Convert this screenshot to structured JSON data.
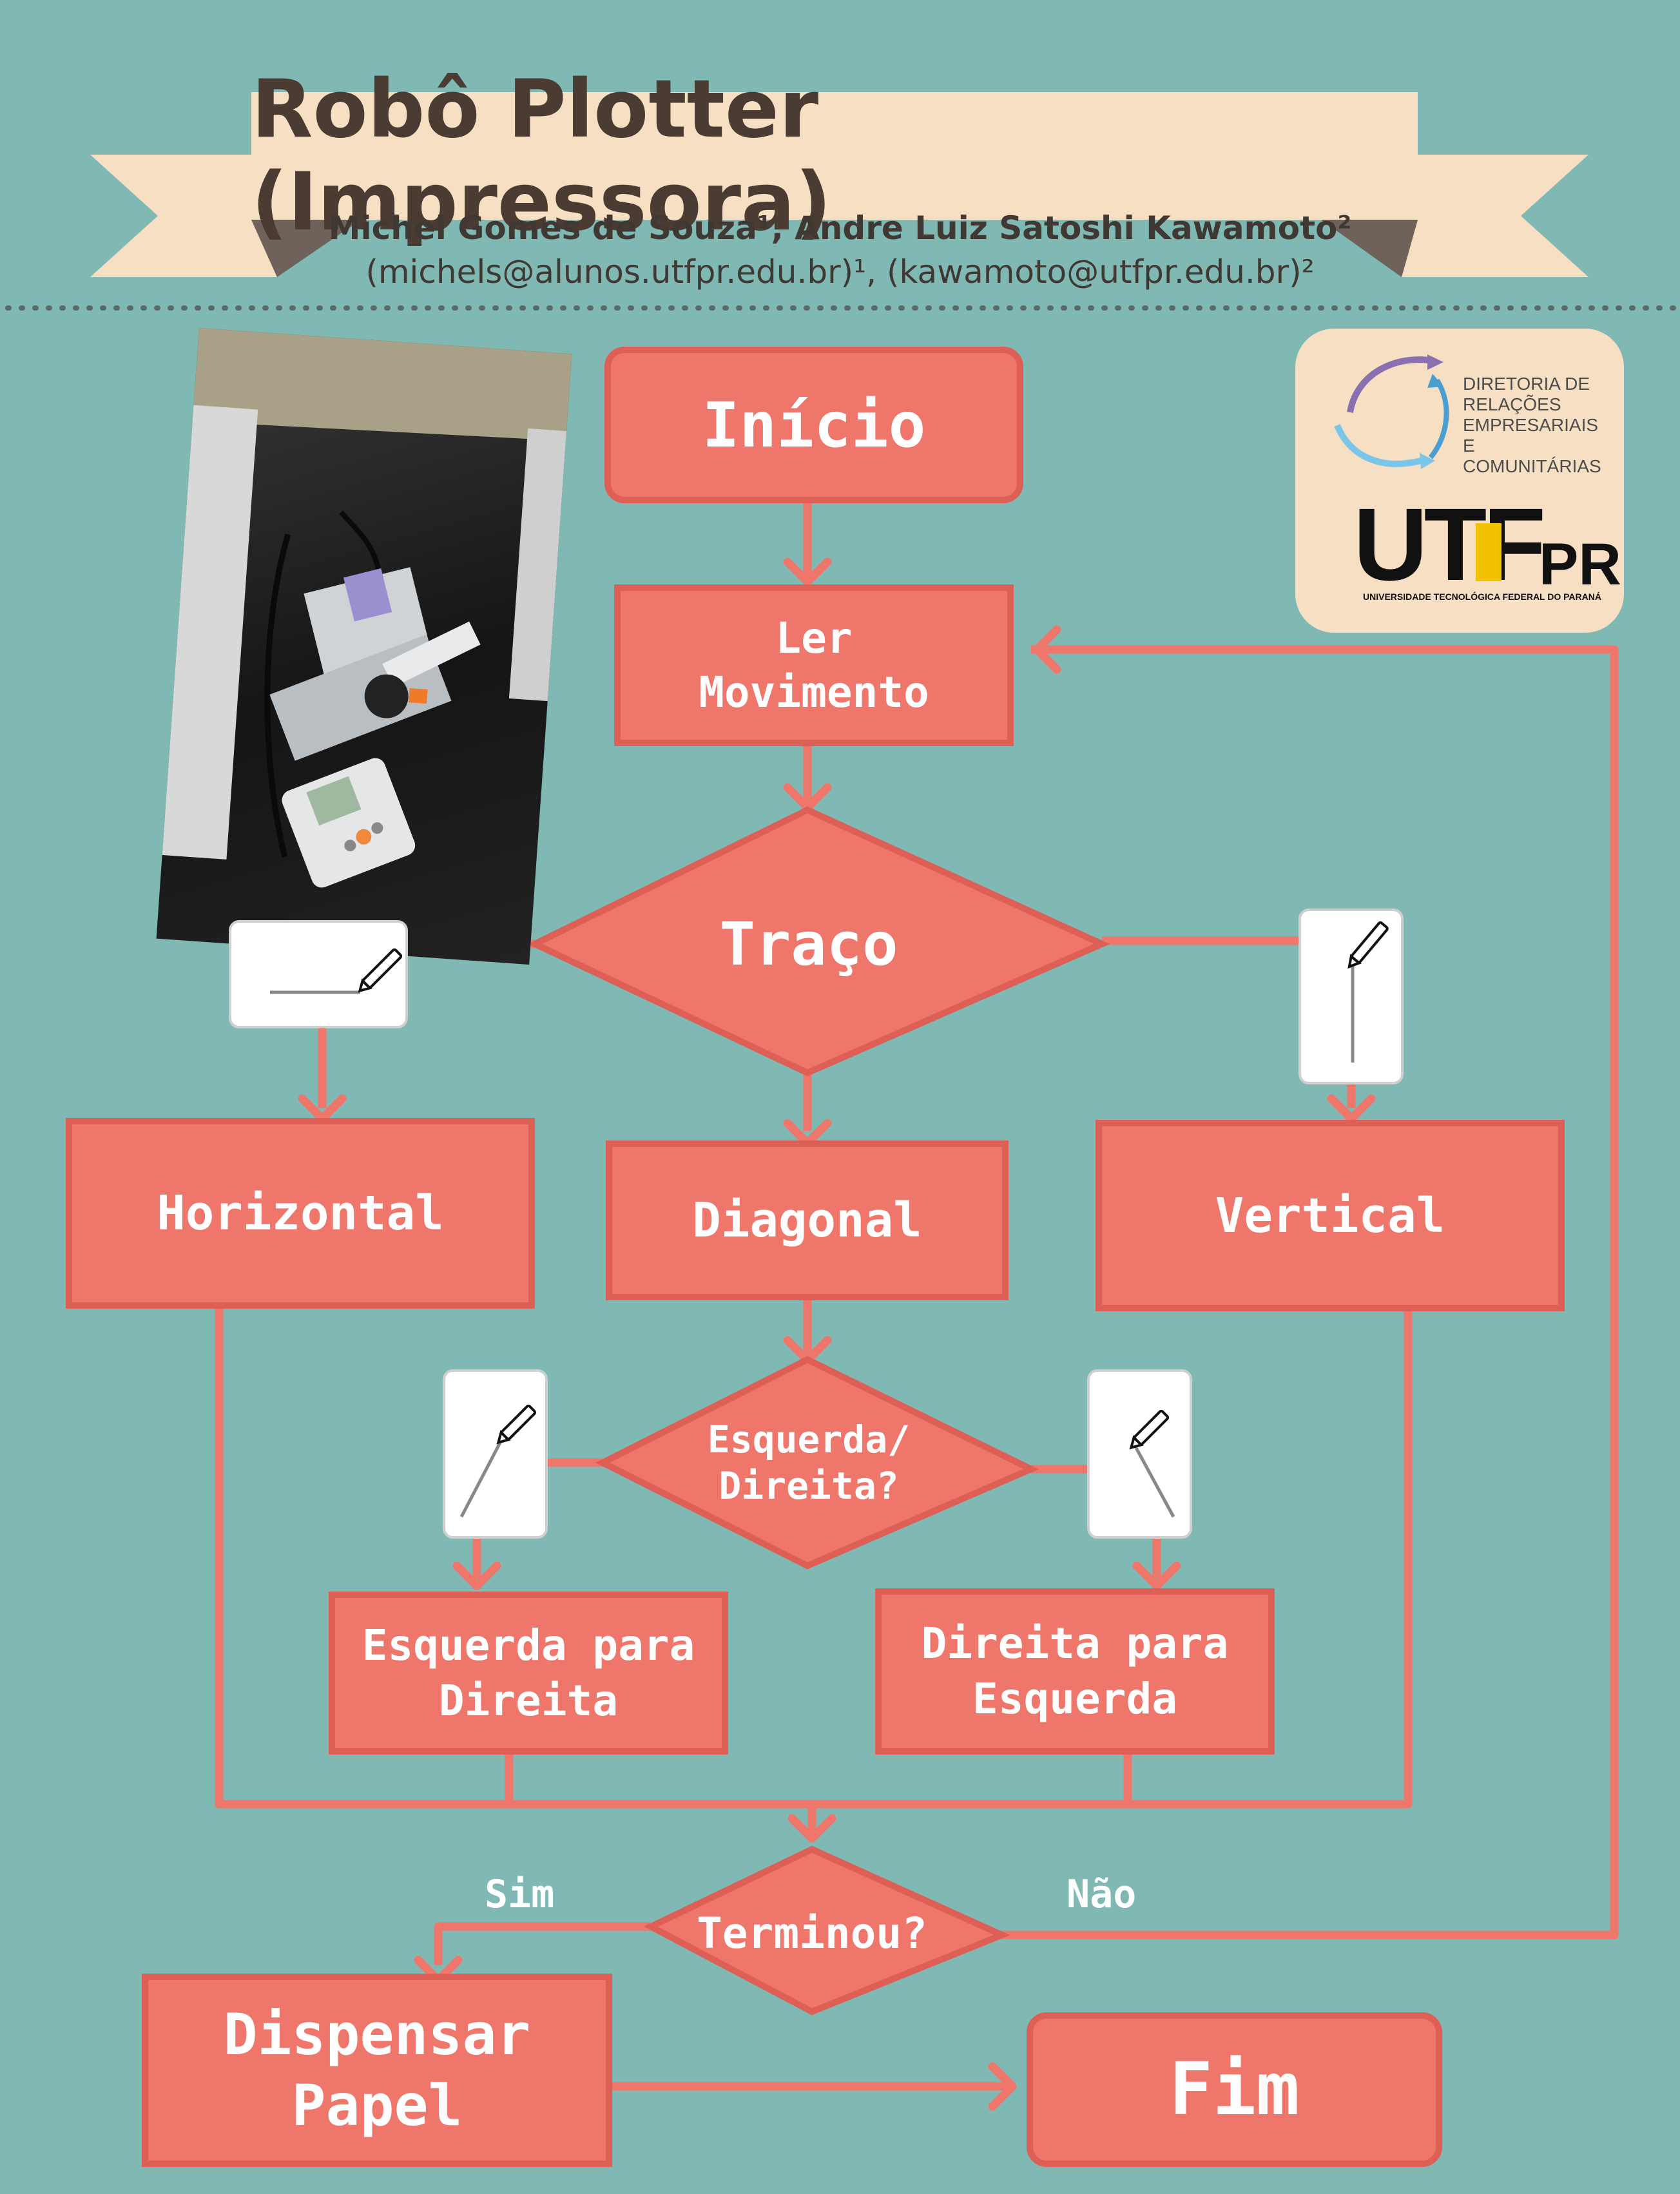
{
  "header": {
    "title": "Robô Plotter (Impressora)",
    "authors": "Michel Gomes de Souza¹, Andre Luiz Satoshi Kawamoto²",
    "emails": "(michels@alunos.utfpr.edu.br)¹, (kawamoto@utfpr.edu.br)²"
  },
  "logo": {
    "org_line1": "DIRETORIA DE",
    "org_line2": "RELAÇÕES",
    "org_line3": "EMPRESARIAIS E",
    "org_line4": "COMUNITÁRIAS",
    "brand_a": "UTF",
    "brand_b": "PR",
    "university": "UNIVERSIDADE TECNOLÓGICA FEDERAL DO PARANÁ"
  },
  "flowchart": {
    "start": "Início",
    "read": "Ler\nMovimento",
    "stroke": "Traço",
    "horizontal": "Horizontal",
    "diagonal": "Diagonal",
    "vertical": "Vertical",
    "direction_question": "Esquerda/\nDireita?",
    "left_to_right": "Esquerda para\nDireita",
    "right_to_left": "Direita para\nEsquerda",
    "finished_question": "Terminou?",
    "yes": "Sim",
    "no": "Não",
    "dispense": "Dispensar\nPapel",
    "end": "Fim"
  },
  "colors": {
    "background": "#80b9b4",
    "node_fill": "#ee766b",
    "node_border": "#dd5f55",
    "ribbon": "#f6dfc2",
    "text_dark": "#4a3c33"
  }
}
